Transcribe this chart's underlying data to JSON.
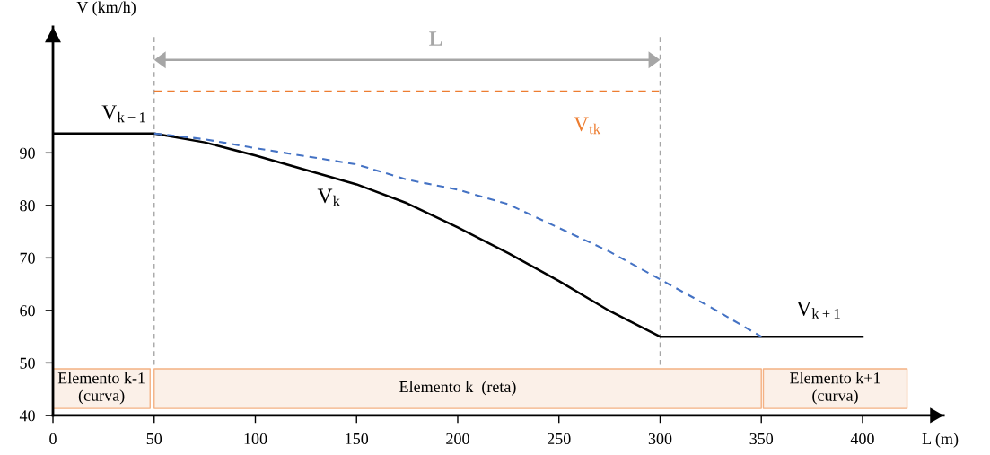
{
  "chart_data": {
    "type": "line",
    "xlabel": "L (m)",
    "ylabel": "V (km/h)",
    "xlim": [
      0,
      440
    ],
    "ylim": [
      40,
      114
    ],
    "xticks": [
      0,
      50,
      100,
      150,
      200,
      250,
      300,
      350,
      400
    ],
    "yticks": [
      40,
      50,
      60,
      70,
      80,
      90
    ],
    "series": [
      {
        "color": "#000000",
        "line_style": "solid",
        "x": [
          0,
          50,
          75,
          100,
          150,
          175,
          200,
          225,
          250,
          275,
          300,
          400
        ],
        "values": [
          93.7,
          93.7,
          92.0,
          89.5,
          84.0,
          80.4,
          75.8,
          70.9,
          65.6,
          59.9,
          55.0,
          55.0
        ]
      },
      {
        "color": "#4472c4",
        "line_style": "dashed",
        "x": [
          50,
          75,
          100,
          150,
          175,
          200,
          225,
          250,
          275,
          300,
          325,
          350
        ],
        "values": [
          93.7,
          92.6,
          90.9,
          87.8,
          84.9,
          83.0,
          80.2,
          75.7,
          71.2,
          65.9,
          60.6,
          55.0
        ]
      },
      {
        "color": "#ed7d31",
        "line_style": "dashed",
        "x": [
          50,
          300
        ],
        "values": [
          101.7,
          101.7
        ]
      }
    ],
    "ref_lines": [
      {
        "axis": "x",
        "value": 50,
        "color": "#a6a6a6",
        "line_style": "dashed"
      },
      {
        "axis": "x",
        "value": 300,
        "color": "#a6a6a6",
        "line_style": "dashed"
      }
    ],
    "bands": [
      {
        "axis": "x",
        "from": 0,
        "to": 48,
        "label": "Elemento k-1\n(curva)",
        "color": "#fbf0e8"
      },
      {
        "axis": "x",
        "from": 50,
        "to": 350,
        "label": "Elemento k  (reta)",
        "color": "#fbf0e8"
      },
      {
        "axis": "x",
        "from": 351,
        "to": 422,
        "label": "Elemento k+1\n(curva)",
        "color": "#fbf0e8"
      }
    ],
    "annotations": [
      "V$_{k−1}$",
      "V$_{tk}$",
      "V$_{k}$",
      "V$_{k+1}$",
      "L"
    ],
    "grid": false,
    "legend": false
  }
}
